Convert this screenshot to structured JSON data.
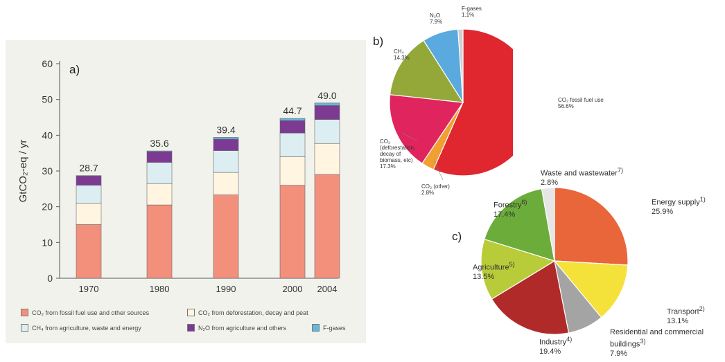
{
  "colors": {
    "panel_a_bg": "#f2f2ed",
    "co2_fossil": "#f3907c",
    "co2_deforestation": "#fff5e1",
    "ch4": "#ddeef2",
    "n2o": "#7d3a93",
    "fgases": "#64b8e0",
    "b_co2_fossil": "#e0262e",
    "b_co2_other": "#f0a030",
    "b_co2_deforest": "#e0245e",
    "b_ch4": "#94a83a",
    "b_n2o": "#5aaadf",
    "b_fgases": "#d0d0d0",
    "c_energy": "#e8663a",
    "c_transport": "#f4e23a",
    "c_residential": "#a4a4a4",
    "c_industry": "#b02a2a",
    "c_agriculture": "#b8cc3a",
    "c_forestry": "#6cac3a",
    "c_waste": "#e6e6e6"
  },
  "chart_data": [
    {
      "type": "bar",
      "stacked": true,
      "panel": "a)",
      "ylabel": "GtCO₂-eq / yr",
      "ylim": [
        0,
        60
      ],
      "yticks": [
        0,
        10,
        20,
        30,
        40,
        50,
        60
      ],
      "categories": [
        "1970",
        "1980",
        "1990",
        "2000",
        "2004"
      ],
      "totals": [
        "28.7",
        "35.6",
        "39.4",
        "44.7",
        "49.0"
      ],
      "series": [
        {
          "name": "CO₂ from fossil fuel use and other sources",
          "values": [
            15,
            20.5,
            23.3,
            26,
            29
          ]
        },
        {
          "name": "CO₂ from deforestation, decay and peat",
          "values": [
            6,
            6,
            6.3,
            8,
            8.7
          ]
        },
        {
          "name": "CH₄ from agriculture, waste and energy",
          "values": [
            5,
            5.9,
            6.1,
            6.6,
            6.7
          ]
        },
        {
          "name": "N₂O from agriculture and others",
          "values": [
            2.6,
            3,
            3.2,
            3.5,
            3.9
          ]
        },
        {
          "name": "F-gases",
          "values": [
            0.1,
            0.2,
            0.5,
            0.6,
            0.7
          ]
        }
      ],
      "legend": [
        "CO₂ from fossil fuel use and other sources",
        "CO₂ from deforestation, decay and peat",
        "CH₄ from agriculture, waste and energy",
        "N₂O from agriculture and others",
        "F-gases"
      ]
    },
    {
      "type": "pie",
      "panel": "b)",
      "slices": [
        {
          "label": "CO₂ fossil fuel use",
          "value_label": "56.6%",
          "value": 56.6
        },
        {
          "label": "CO₂ (other)",
          "value_label": "2.8%",
          "value": 2.8
        },
        {
          "label": "CO₂ (deforestation, decay of biomass, etc)",
          "value_label": "17.3%",
          "value": 17.3
        },
        {
          "label": "CH₄",
          "value_label": "14.3%",
          "value": 14.3
        },
        {
          "label": "N₂O",
          "value_label": "7.9%",
          "value": 7.9
        },
        {
          "label": "F-gases",
          "value_label": "1.1%",
          "value": 1.1
        }
      ]
    },
    {
      "type": "pie",
      "panel": "c)",
      "slices": [
        {
          "label": "Energy supply",
          "sup": "1)",
          "value_label": "25.9%",
          "value": 25.9
        },
        {
          "label": "Transport",
          "sup": "2)",
          "value_label": "13.1%",
          "value": 13.1
        },
        {
          "label": "Residential and commercial buildings",
          "sup": "3)",
          "value_label": "7.9%",
          "value": 7.9
        },
        {
          "label": "Industry",
          "sup": "4)",
          "value_label": "19.4%",
          "value": 19.4
        },
        {
          "label": "Agriculture",
          "sup": "5)",
          "value_label": "13.5%",
          "value": 13.5
        },
        {
          "label": "Forestry",
          "sup": "6)",
          "value_label": "17.4%",
          "value": 17.4
        },
        {
          "label": "Waste and wastewater",
          "sup": "7)",
          "value_label": "2.8%",
          "value": 2.8
        }
      ]
    }
  ]
}
